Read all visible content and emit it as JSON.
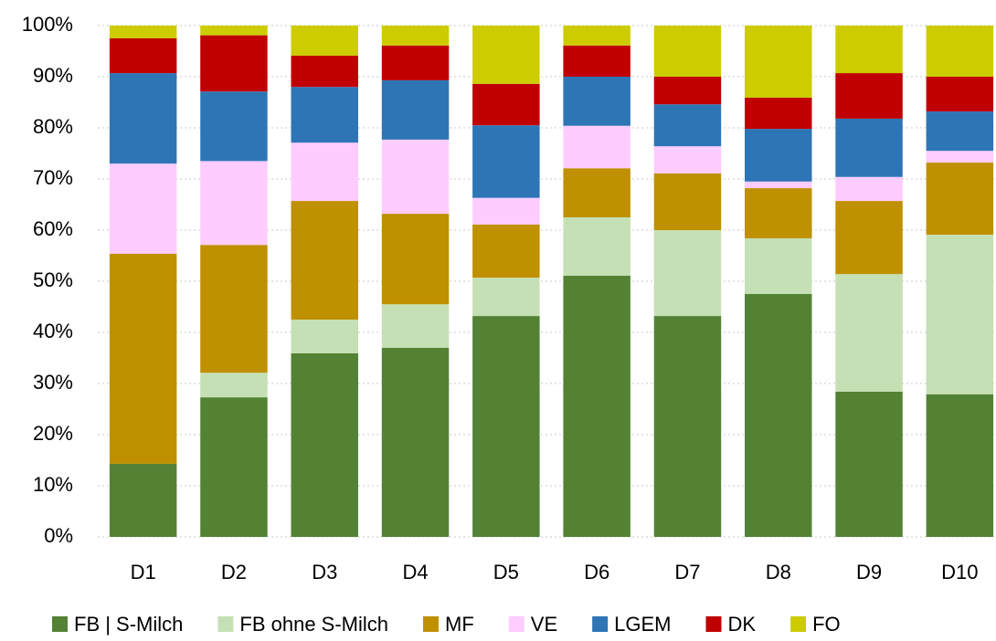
{
  "chart_data": {
    "type": "stacked_bar",
    "categories": [
      "D1",
      "D2",
      "D3",
      "D4",
      "D5",
      "D6",
      "D7",
      "D8",
      "D9",
      "D10"
    ],
    "series": [
      {
        "name": "FB | S-Milch",
        "color": "#548235",
        "values": [
          14.3,
          27.3,
          35.9,
          37.0,
          43.2,
          51.1,
          43.2,
          47.5,
          28.4,
          27.9
        ]
      },
      {
        "name": "FB ohne S-Milch",
        "color": "#c5e0b4",
        "values": [
          0,
          4.8,
          6.6,
          8.5,
          7.5,
          11.4,
          16.8,
          10.9,
          23.0,
          31.2
        ]
      },
      {
        "name": "MF",
        "color": "#bf9000",
        "values": [
          41.1,
          25.0,
          23.2,
          17.7,
          10.4,
          9.6,
          11.1,
          9.8,
          14.3,
          14.1
        ]
      },
      {
        "name": "VE",
        "color": "#ffccff",
        "values": [
          17.6,
          16.4,
          11.4,
          14.5,
          5.2,
          8.3,
          5.3,
          1.3,
          4.7,
          2.3
        ]
      },
      {
        "name": "LGEM",
        "color": "#2e75b6",
        "values": [
          17.7,
          13.6,
          10.9,
          11.6,
          14.2,
          9.6,
          8.2,
          10.3,
          11.4,
          7.7
        ]
      },
      {
        "name": "DK",
        "color": "#c00000",
        "values": [
          6.8,
          11.0,
          6.1,
          6.8,
          8.1,
          6.1,
          5.4,
          6.1,
          8.9,
          6.8
        ]
      },
      {
        "name": "FO",
        "color": "#cccc00",
        "values": [
          2.5,
          1.9,
          5.9,
          3.9,
          11.4,
          3.9,
          10.0,
          14.1,
          9.3,
          10.0
        ]
      }
    ],
    "ylim": [
      0,
      100
    ],
    "yticks": [
      {
        "value": 0,
        "label": "0%"
      },
      {
        "value": 10,
        "label": "10%"
      },
      {
        "value": 20,
        "label": "20%"
      },
      {
        "value": 30,
        "label": "30%"
      },
      {
        "value": 40,
        "label": "40%"
      },
      {
        "value": 50,
        "label": "50%"
      },
      {
        "value": 60,
        "label": "60%"
      },
      {
        "value": 70,
        "label": "70%"
      },
      {
        "value": 80,
        "label": "80%"
      },
      {
        "value": 90,
        "label": "90%"
      },
      {
        "value": 100,
        "label": "100%"
      }
    ],
    "grid": true,
    "legend": "bottom"
  }
}
